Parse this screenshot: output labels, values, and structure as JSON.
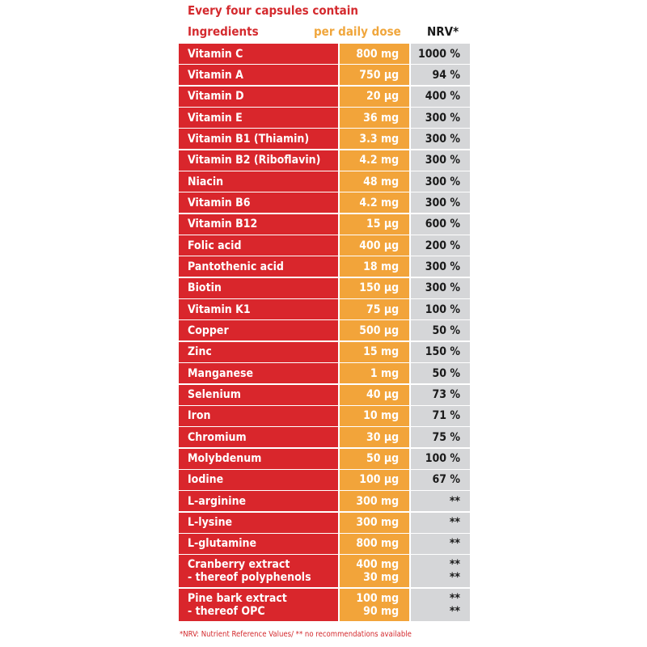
{
  "title": "Every four capsules contain",
  "headers": {
    "ingredients": "Ingredients",
    "dose": "per daily dose",
    "nrv": "NRV*"
  },
  "rows": [
    {
      "name": "Vitamin C",
      "dose": "800 mg",
      "nrv": "1000 %"
    },
    {
      "name": "Vitamin A",
      "dose": "750 µg",
      "nrv": "94 %"
    },
    {
      "name": "Vitamin D",
      "dose": "20 µg",
      "nrv": "400 %"
    },
    {
      "name": "Vitamin E",
      "dose": "36 mg",
      "nrv": "300 %"
    },
    {
      "name": "Vitamin B1 (Thiamin)",
      "dose": "3.3 mg",
      "nrv": "300 %"
    },
    {
      "name": "Vitamin B2 (Riboflavin)",
      "dose": "4.2 mg",
      "nrv": "300 %"
    },
    {
      "name": "Niacin",
      "dose": "48 mg",
      "nrv": "300 %"
    },
    {
      "name": "Vitamin B6",
      "dose": "4.2 mg",
      "nrv": "300 %"
    },
    {
      "name": "Vitamin B12",
      "dose": "15 µg",
      "nrv": "600 %"
    },
    {
      "name": "Folic acid",
      "dose": "400 µg",
      "nrv": "200 %"
    },
    {
      "name": "Pantothenic acid",
      "dose": "18 mg",
      "nrv": "300 %"
    },
    {
      "name": "Biotin",
      "dose": "150 µg",
      "nrv": "300 %"
    },
    {
      "name": "Vitamin K1",
      "dose": "75 µg",
      "nrv": "100 %"
    },
    {
      "name": "Copper",
      "dose": "500 µg",
      "nrv": "50 %"
    },
    {
      "name": "Zinc",
      "dose": "15 mg",
      "nrv": "150 %"
    },
    {
      "name": "Manganese",
      "dose": "1 mg",
      "nrv": "50 %"
    },
    {
      "name": "Selenium",
      "dose": "40 µg",
      "nrv": "73 %"
    },
    {
      "name": "Iron",
      "dose": "10 mg",
      "nrv": "71 %"
    },
    {
      "name": "Chromium",
      "dose": "30 µg",
      "nrv": "75 %"
    },
    {
      "name": "Molybdenum",
      "dose": "50 µg",
      "nrv": "100 %"
    },
    {
      "name": "Iodine",
      "dose": "100 µg",
      "nrv": "67 %"
    },
    {
      "name": "L-arginine",
      "dose": "300 mg",
      "nrv": "**"
    },
    {
      "name": "L-lysine",
      "dose": "300 mg",
      "nrv": "**"
    },
    {
      "name": "L-glutamine",
      "dose": "800 mg",
      "nrv": "**"
    },
    {
      "name": "Cranberry extract",
      "dose": "400 mg",
      "nrv": "**",
      "sub": {
        "name": "- thereof polyphenols",
        "dose": "30 mg",
        "nrv": "**"
      }
    },
    {
      "name": "Pine bark extract",
      "dose": "100 mg",
      "nrv": "**",
      "sub": {
        "name": "- thereof OPC",
        "dose": "90 mg",
        "nrv": "**"
      }
    }
  ],
  "footnote": "*NRV: Nutrient Reference Values/ ** no recommendations available"
}
